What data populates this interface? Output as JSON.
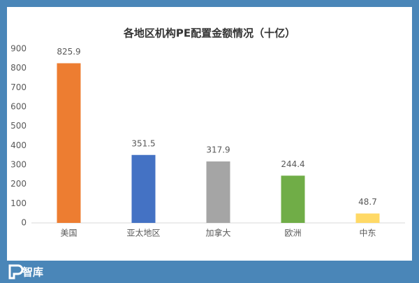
{
  "chart_data": {
    "type": "bar",
    "title": "各地区机构PE配置金额情况（十亿）",
    "categories": [
      "美国",
      "亚太地区",
      "加拿大",
      "欧洲",
      "中东"
    ],
    "values": [
      825.9,
      351.5,
      317.9,
      244.4,
      48.7
    ],
    "colors": [
      "#ed7d31",
      "#4472c4",
      "#a5a5a5",
      "#70ad47",
      "#ffd966"
    ],
    "ylim": [
      0,
      900
    ],
    "yticks": [
      0,
      100,
      200,
      300,
      400,
      500,
      600,
      700,
      800,
      900
    ],
    "grid": false
  },
  "logo": "智库"
}
